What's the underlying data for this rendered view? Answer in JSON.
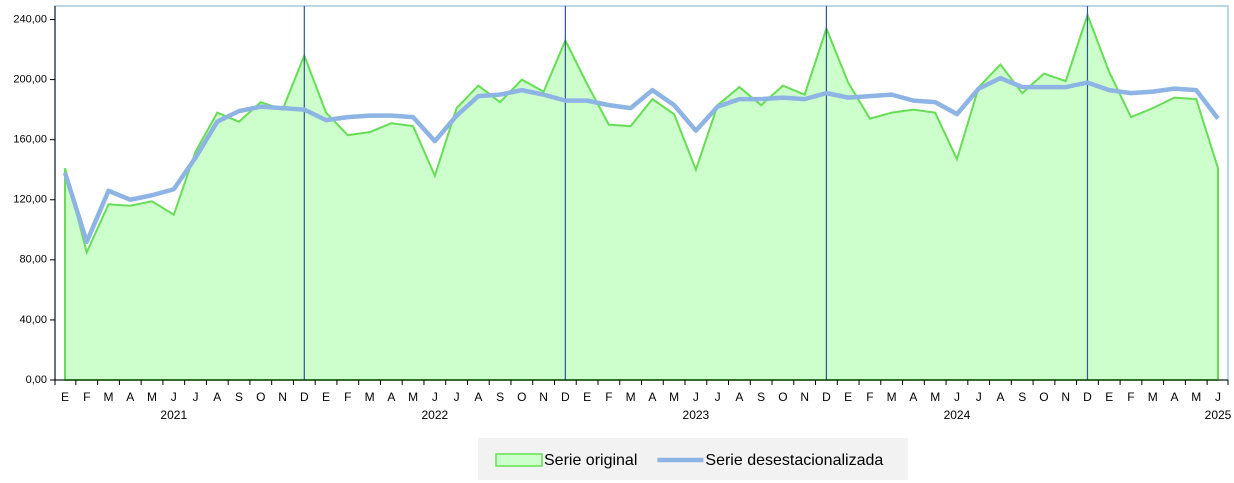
{
  "chart_data": {
    "type": "area",
    "categories": [
      "E",
      "F",
      "M",
      "A",
      "M",
      "J",
      "J",
      "A",
      "S",
      "O",
      "N",
      "D",
      "E",
      "F",
      "M",
      "A",
      "M",
      "J",
      "J",
      "A",
      "S",
      "O",
      "N",
      "D",
      "E",
      "F",
      "M",
      "A",
      "M",
      "J",
      "J",
      "A",
      "S",
      "O",
      "N",
      "D",
      "E",
      "F",
      "M",
      "A",
      "M",
      "J",
      "J",
      "A",
      "S",
      "O",
      "N",
      "D",
      "E",
      "F",
      "M",
      "A",
      "M",
      "J"
    ],
    "years": [
      "2021",
      "2022",
      "2023",
      "2024",
      "2025"
    ],
    "series": [
      {
        "name": "Serie original",
        "type": "area",
        "color": "#66dd55",
        "fill": "#ccffcc",
        "values": [
          141,
          85,
          117,
          116,
          119,
          110,
          152,
          178,
          172,
          185,
          180,
          216,
          178,
          163,
          165,
          171,
          169,
          136,
          181,
          196,
          185,
          200,
          192,
          226,
          197,
          170,
          169,
          187,
          177,
          140,
          183,
          195,
          183,
          196,
          190,
          234,
          198,
          174,
          178,
          180,
          178,
          147,
          195,
          210,
          191,
          204,
          199,
          243,
          205,
          175,
          181,
          188,
          187,
          141
        ]
      },
      {
        "name": "Serie desestacionalizada",
        "type": "line",
        "color": "#8eb4e3",
        "values": [
          138,
          92,
          126,
          120,
          123,
          127,
          148,
          172,
          179,
          182,
          181,
          180,
          173,
          175,
          176,
          176,
          175,
          159,
          176,
          189,
          190,
          193,
          190,
          186,
          186,
          183,
          181,
          193,
          183,
          166,
          182,
          187,
          187,
          188,
          187,
          191,
          188,
          189,
          190,
          186,
          185,
          177,
          194,
          201,
          195,
          195,
          195,
          198,
          193,
          191,
          192,
          194,
          193,
          174
        ]
      }
    ],
    "ylim": [
      0,
      249
    ],
    "yticks": [
      {
        "value": 0,
        "label": "0,00"
      },
      {
        "value": 40,
        "label": "40,00"
      },
      {
        "value": 80,
        "label": "80,00"
      },
      {
        "value": 120,
        "label": "120,00"
      },
      {
        "value": 160,
        "label": "160,00"
      },
      {
        "value": 200,
        "label": "200,00"
      },
      {
        "value": 240,
        "label": "240,00"
      }
    ]
  }
}
